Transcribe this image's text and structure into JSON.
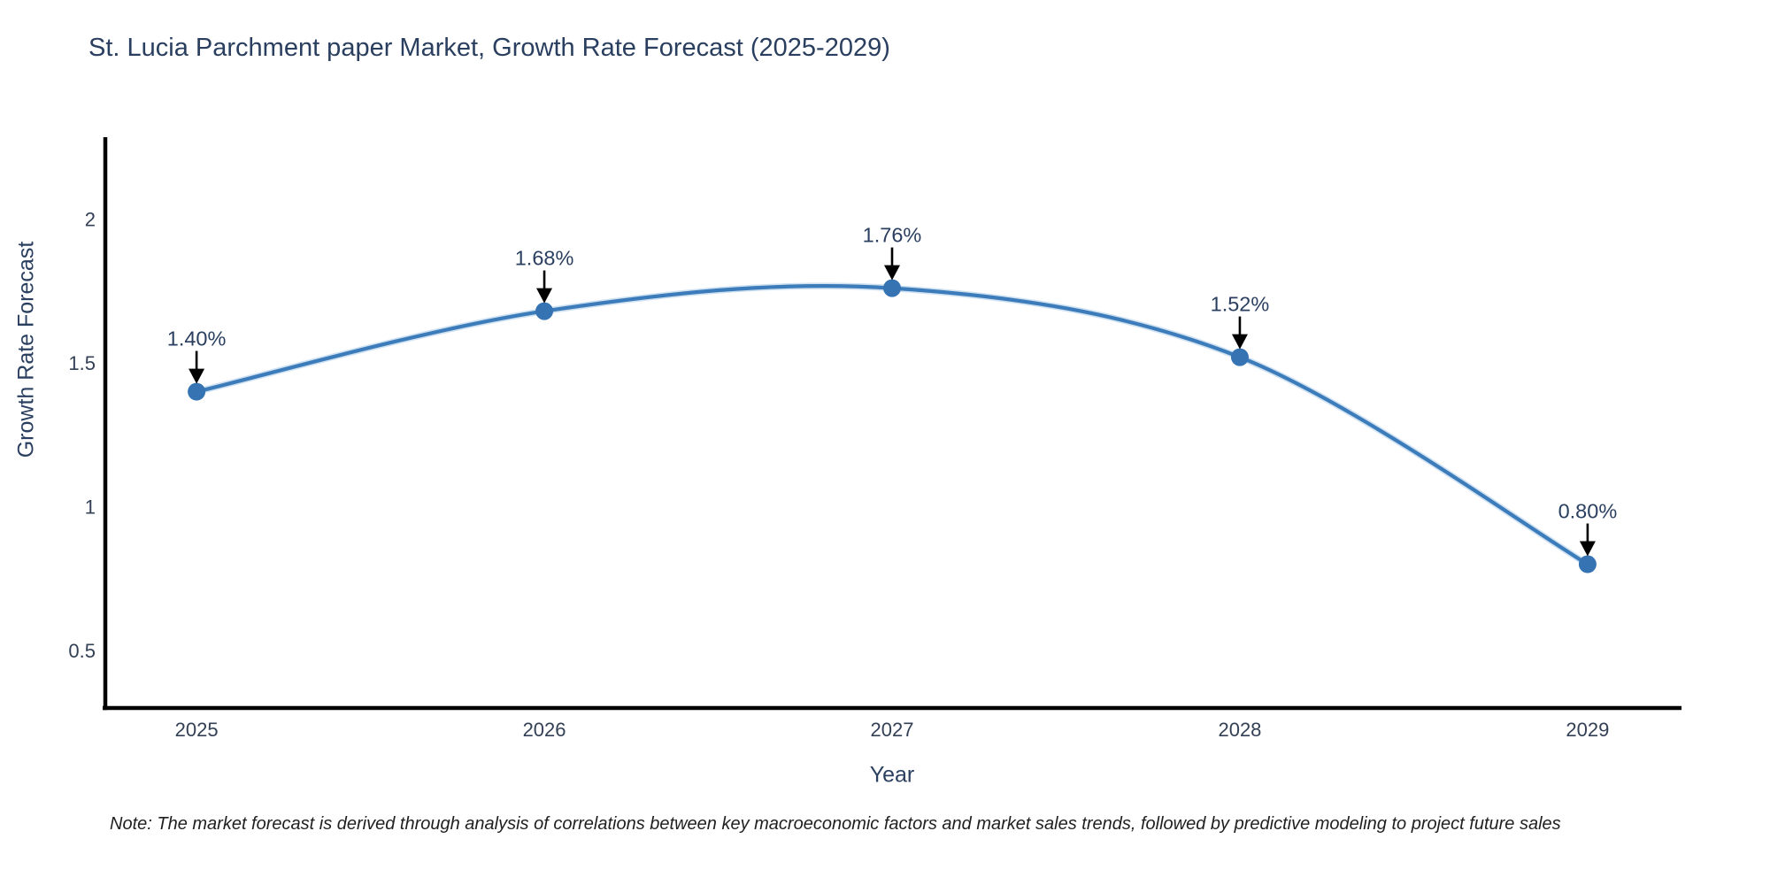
{
  "note": "Note: The market forecast is derived through analysis of correlations between key macroeconomic factors and market sales trends, followed by predictive modeling to project future sales",
  "chart_data": {
    "type": "line",
    "title": "St. Lucia Parchment paper Market, Growth Rate Forecast (2025-2029)",
    "xlabel": "Year",
    "ylabel": "Growth Rate Forecast",
    "x": [
      2025,
      2026,
      2027,
      2028,
      2029
    ],
    "categories": [
      "2025",
      "2026",
      "2027",
      "2028",
      "2029"
    ],
    "values": [
      1.4,
      1.68,
      1.76,
      1.52,
      0.8
    ],
    "point_labels": [
      "1.40%",
      "1.68%",
      "1.76%",
      "1.52%",
      "0.80%"
    ],
    "yticks": [
      0.5,
      1,
      1.5,
      2
    ],
    "ytick_labels": [
      "0.5",
      "1",
      "1.5",
      "2"
    ],
    "ylim": [
      0.3,
      2.285
    ],
    "xlim": [
      2024.73,
      2029.27
    ],
    "line_shape": "spline",
    "grid": false,
    "legend": "none",
    "marker_size_px": 10,
    "colors": {
      "line": "#3c7cba",
      "line_halo": "#a9cbe8",
      "marker": "#3573b2",
      "axis": "#000000",
      "arrow": "#000000",
      "title_text": "#2a3f5f",
      "tick_text": "#334055",
      "annotation_text": "#2a3f5f",
      "note_text": "#1f1f1f",
      "background": "#ffffff"
    }
  }
}
